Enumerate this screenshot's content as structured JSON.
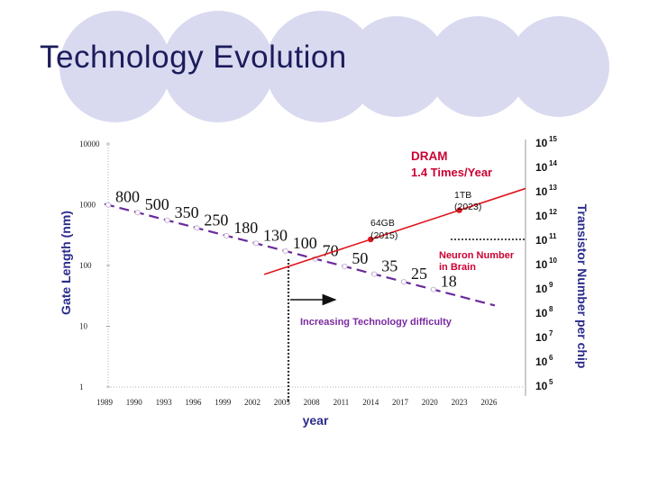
{
  "slide": {
    "title": "Technology Evolution",
    "circle_color": "#d9d9f0"
  },
  "chart_data": {
    "type": "line",
    "x_label": "year",
    "x_ticks": [
      "1989",
      "1990",
      "1993",
      "1996",
      "1999",
      "2002",
      "2005",
      "2008",
      "2011",
      "2014",
      "2017",
      "2020",
      "2023",
      "2026"
    ],
    "left_axis": {
      "title": "Gate Length (nm)",
      "scale": "log",
      "ticks": [
        "10000",
        "1000",
        "100",
        "10",
        "1"
      ],
      "range": [
        1,
        10000
      ]
    },
    "right_axis": {
      "title": "Transistor Number per chip",
      "scale": "log",
      "ticks": [
        {
          "base": "10",
          "exp": "15"
        },
        {
          "base": "10",
          "exp": "14"
        },
        {
          "base": "10",
          "exp": "13"
        },
        {
          "base": "10",
          "exp": "12"
        },
        {
          "base": "10",
          "exp": "11"
        },
        {
          "base": "10",
          "exp": "10"
        },
        {
          "base": "10",
          "exp": "9"
        },
        {
          "base": "10",
          "exp": "8"
        },
        {
          "base": "10",
          "exp": "7"
        },
        {
          "base": "10",
          "exp": "6"
        },
        {
          "base": "10",
          "exp": "5"
        }
      ],
      "range_exponent": [
        5,
        15
      ]
    },
    "gate_length": {
      "color": "#6a2a9c",
      "labels": [
        {
          "tick": 0,
          "value": "800"
        },
        {
          "tick": 1,
          "value": "500"
        },
        {
          "tick": 2,
          "value": "350"
        },
        {
          "tick": 3,
          "value": "250"
        },
        {
          "tick": 4,
          "value": "180"
        },
        {
          "tick": 5,
          "value": "130"
        },
        {
          "tick": 6,
          "value": "100"
        },
        {
          "tick": 7,
          "value": "70"
        },
        {
          "tick": 8,
          "value": "50"
        },
        {
          "tick": 9,
          "value": "35"
        },
        {
          "tick": 10,
          "value": "25"
        },
        {
          "tick": 11,
          "value": "18"
        }
      ]
    },
    "dram": {
      "color": "#e0161e",
      "label_line1": "DRAM",
      "label_line2": "1.4 Times/Year",
      "points": [
        {
          "tick": 9,
          "exponent": 11.0,
          "label_line1": "64GB",
          "label_line2": "(2015)"
        },
        {
          "tick": 12,
          "exponent": 12.2,
          "label_line1": "1TB",
          "label_line2": "(2023)"
        }
      ]
    },
    "neuron": {
      "exponent": 11.0,
      "label_line1": "Neuron Number",
      "label_line2": "in Brain"
    },
    "difficulty": {
      "label": "Increasing Technology difficulty"
    }
  }
}
